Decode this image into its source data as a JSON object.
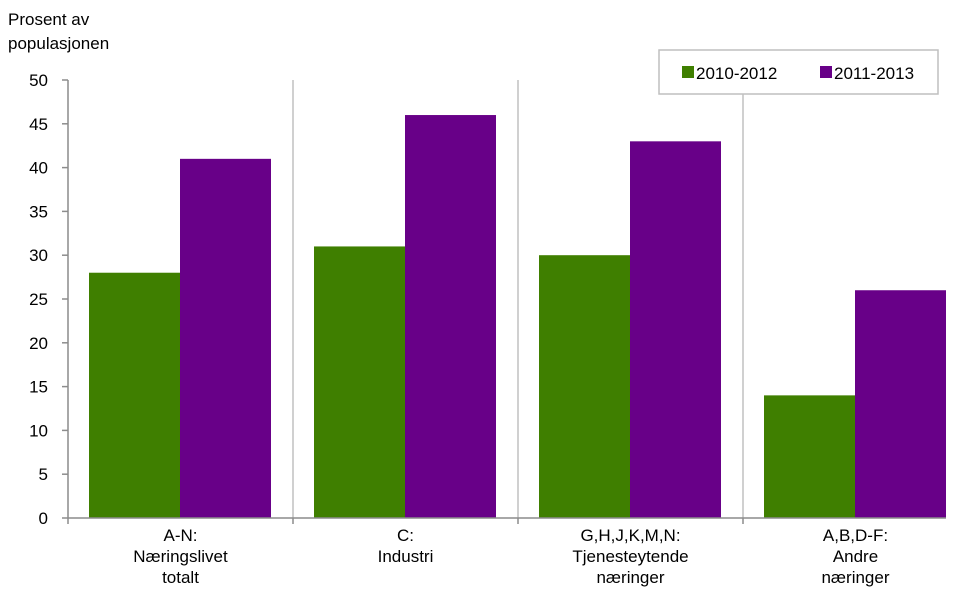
{
  "chart_data": {
    "type": "bar",
    "ylabel": [
      "Prosent av",
      "populasjonen"
    ],
    "ylim": [
      0,
      50
    ],
    "yticks": [
      0,
      5,
      10,
      15,
      20,
      25,
      30,
      35,
      40,
      45,
      50
    ],
    "categories": [
      [
        "A-N:",
        "Næringslivet",
        "totalt"
      ],
      [
        "C:",
        "Industri"
      ],
      [
        "G,H,J,K,M,N:",
        "Tjenesteytende",
        "næringer"
      ],
      [
        "A,B,D-F:",
        "Andre",
        "næringer"
      ]
    ],
    "series": [
      {
        "name": "2010-2012",
        "color": "#3f7f00",
        "values": [
          28,
          31,
          30,
          14
        ]
      },
      {
        "name": "2011-2013",
        "color": "#680088",
        "values": [
          41,
          46,
          43,
          26
        ]
      }
    ],
    "legend_position": "top-right",
    "grid": "vertical separators between categories"
  }
}
